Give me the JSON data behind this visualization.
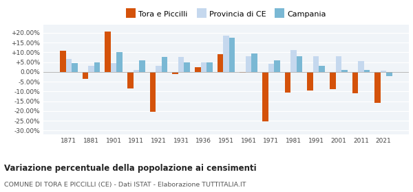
{
  "years": [
    1871,
    1881,
    1901,
    1911,
    1921,
    1931,
    1936,
    1951,
    1961,
    1971,
    1981,
    1991,
    2001,
    2011,
    2021
  ],
  "tora": [
    10.8,
    -3.5,
    20.5,
    -8.5,
    -20.5,
    -1.2,
    2.5,
    9.2,
    -0.5,
    -25.5,
    -10.5,
    -9.5,
    -9.0,
    -11.0,
    -16.0
  ],
  "provincia": [
    6.5,
    3.0,
    4.5,
    1.0,
    3.0,
    7.5,
    5.0,
    18.5,
    8.0,
    4.0,
    11.0,
    8.0,
    8.0,
    5.5,
    0.5
  ],
  "campania": [
    4.5,
    5.0,
    10.0,
    6.0,
    7.5,
    5.0,
    5.0,
    17.5,
    9.5,
    6.0,
    8.0,
    3.0,
    1.0,
    1.0,
    -2.0
  ],
  "color_tora": "#d4520a",
  "color_provincia": "#c5d8ee",
  "color_campania": "#7ab8d4",
  "title": "Variazione percentuale della popolazione ai censimenti",
  "subtitle": "COMUNE DI TORA E PICCILLI (CE) - Dati ISTAT - Elaborazione TUTTITALIA.IT",
  "legend_tora": "Tora e Piccilli",
  "legend_provincia": "Provincia di CE",
  "legend_campania": "Campania",
  "ylim": [
    -32,
    24
  ],
  "yticks": [
    -30,
    -25,
    -20,
    -15,
    -10,
    -5,
    0,
    5,
    10,
    15,
    20
  ],
  "background": "#ffffff",
  "plot_bg": "#f0f4f8"
}
